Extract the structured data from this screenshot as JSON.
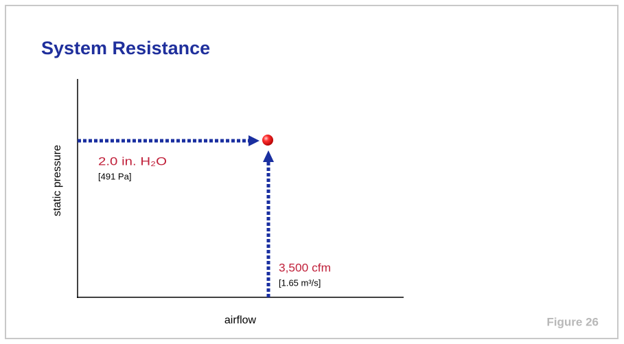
{
  "header": {
    "title": "System Resistance"
  },
  "axes": {
    "y_label": "static pressure",
    "x_label": "airflow"
  },
  "operating_point": {
    "pressure": {
      "primary": "2.0 in. H₂O",
      "secondary": "[491 Pa]"
    },
    "flow": {
      "primary": "3,500 cfm",
      "secondary": "[1.65 m³/s]"
    }
  },
  "footer": {
    "figure": "Figure 26"
  }
}
